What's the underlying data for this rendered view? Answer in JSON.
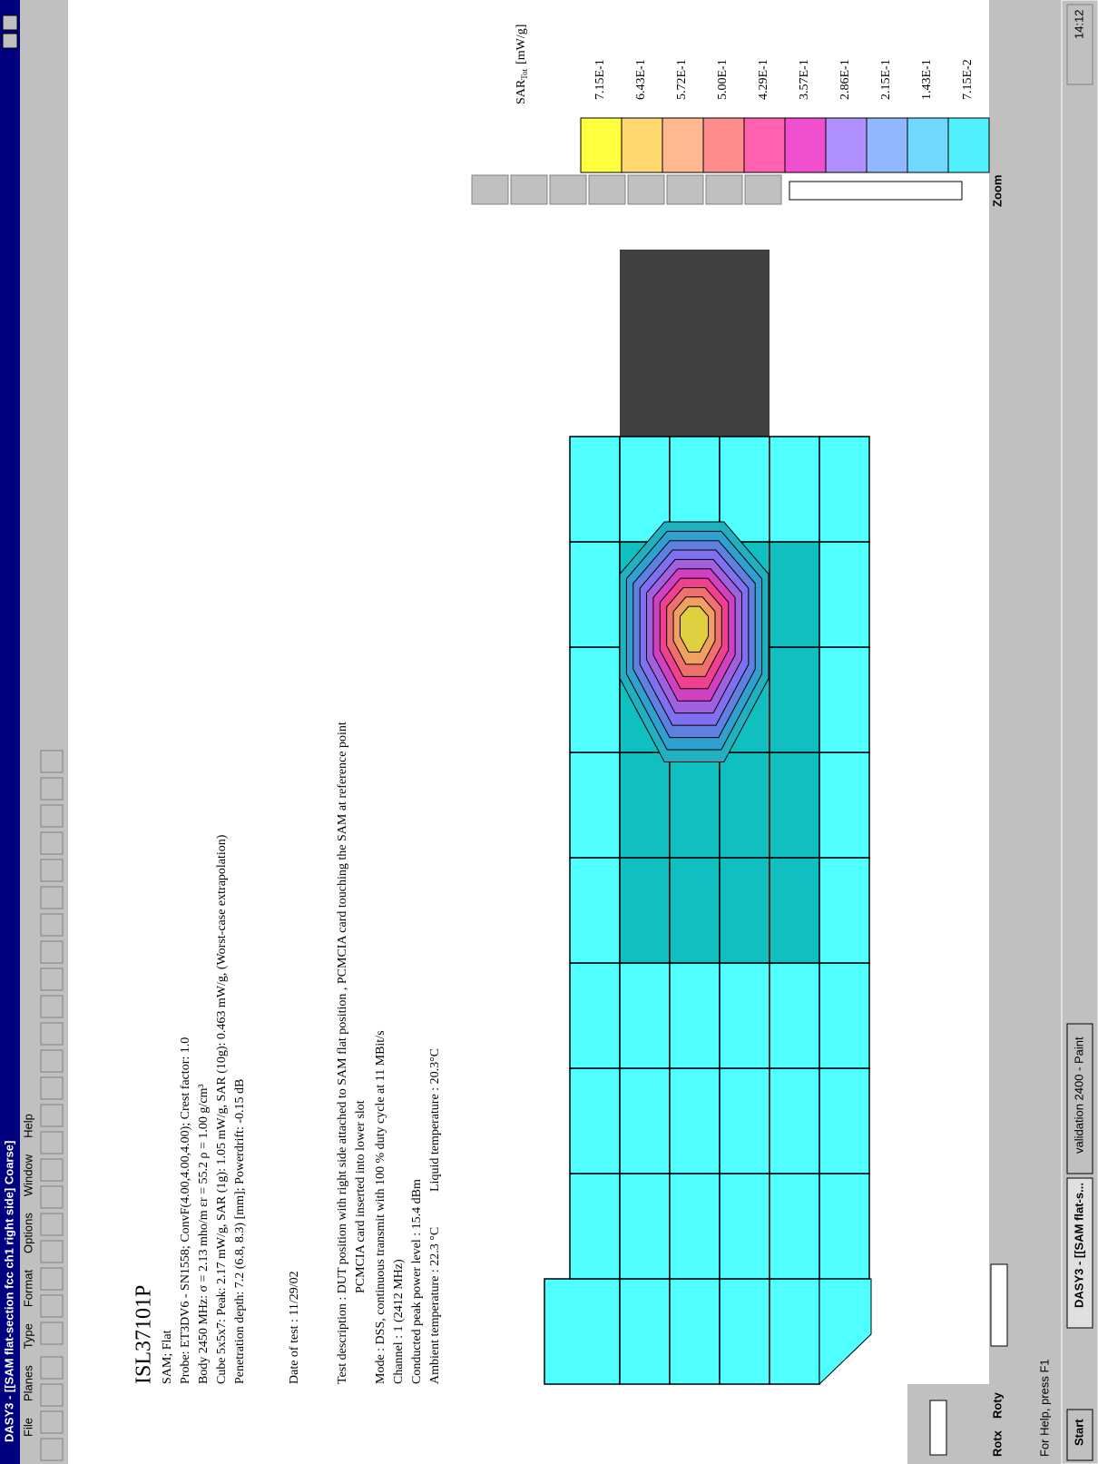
{
  "window": {
    "title": "DASY3 - [[SAM flat-section fcc ch1 right side]  Coarse]",
    "menu": [
      "File",
      "Planes",
      "Type",
      "Format",
      "Options",
      "Window",
      "Help"
    ]
  },
  "document": {
    "heading": "ISL37101P",
    "lines": [
      "SAM; Flat",
      "Probe: ET3DV6 - SN1558; ConvF(4.00,4.00,4.00); Crest factor: 1.0",
      "Body 2450 MHz: σ = 2.13 mho/m εr = 55.2 ρ = 1.00 g/cm³",
      "Cube 5x5x7: Peak: 2.17  mW/g, SAR (1g): 1.05  mW/g, SAR (10g): 0.463  mW/g, (Worst-case extrapolation)",
      "Penetration depth: 7.2 (6.8, 8.3) [mm]; Powerdrift: -0.15 dB"
    ],
    "date": "Date of test : 11/29/02",
    "description": [
      "Test description : DUT position with right side attached to SAM flat position , PCMCIA card touching the SAM at reference point",
      "PCMCIA card inserted into lower slot"
    ],
    "conditions": [
      "Mode : DSS, continuous transmit with 100 % duty cycle at 11 MBit/s",
      "Channel : 1 (2412 MHz)",
      "Conducted peak power level : 15.4 dBm"
    ],
    "ambient": "Ambient temperature :   22.3 °C",
    "liquid": "Liquid temperature :   20.3°C"
  },
  "legend": {
    "title": "SAR",
    "subscript": "Tot",
    "unit": "[mW/g]",
    "labels": [
      "7.15E-1",
      "6.43E-1",
      "5.72E-1",
      "5.00E-1",
      "4.29E-1",
      "3.57E-1",
      "2.86E-1",
      "2.15E-1",
      "1.43E-1",
      "7.15E-2"
    ],
    "colors": [
      "#ffff40",
      "#ffd870",
      "#ffb890",
      "#ff8c8c",
      "#ff60b0",
      "#f050d0",
      "#b090ff",
      "#90b8ff",
      "#70d8ff",
      "#50f0ff"
    ]
  },
  "controls": {
    "rotx": "Rotx",
    "roty": "Roty",
    "zoom": "Zoom"
  },
  "status": "For Help, press F1",
  "taskbar": {
    "start": "Start",
    "tasks": [
      "DASY3 - [[SAM flat-s...",
      "validation 2400 - Paint"
    ],
    "clock": "14:12"
  }
}
